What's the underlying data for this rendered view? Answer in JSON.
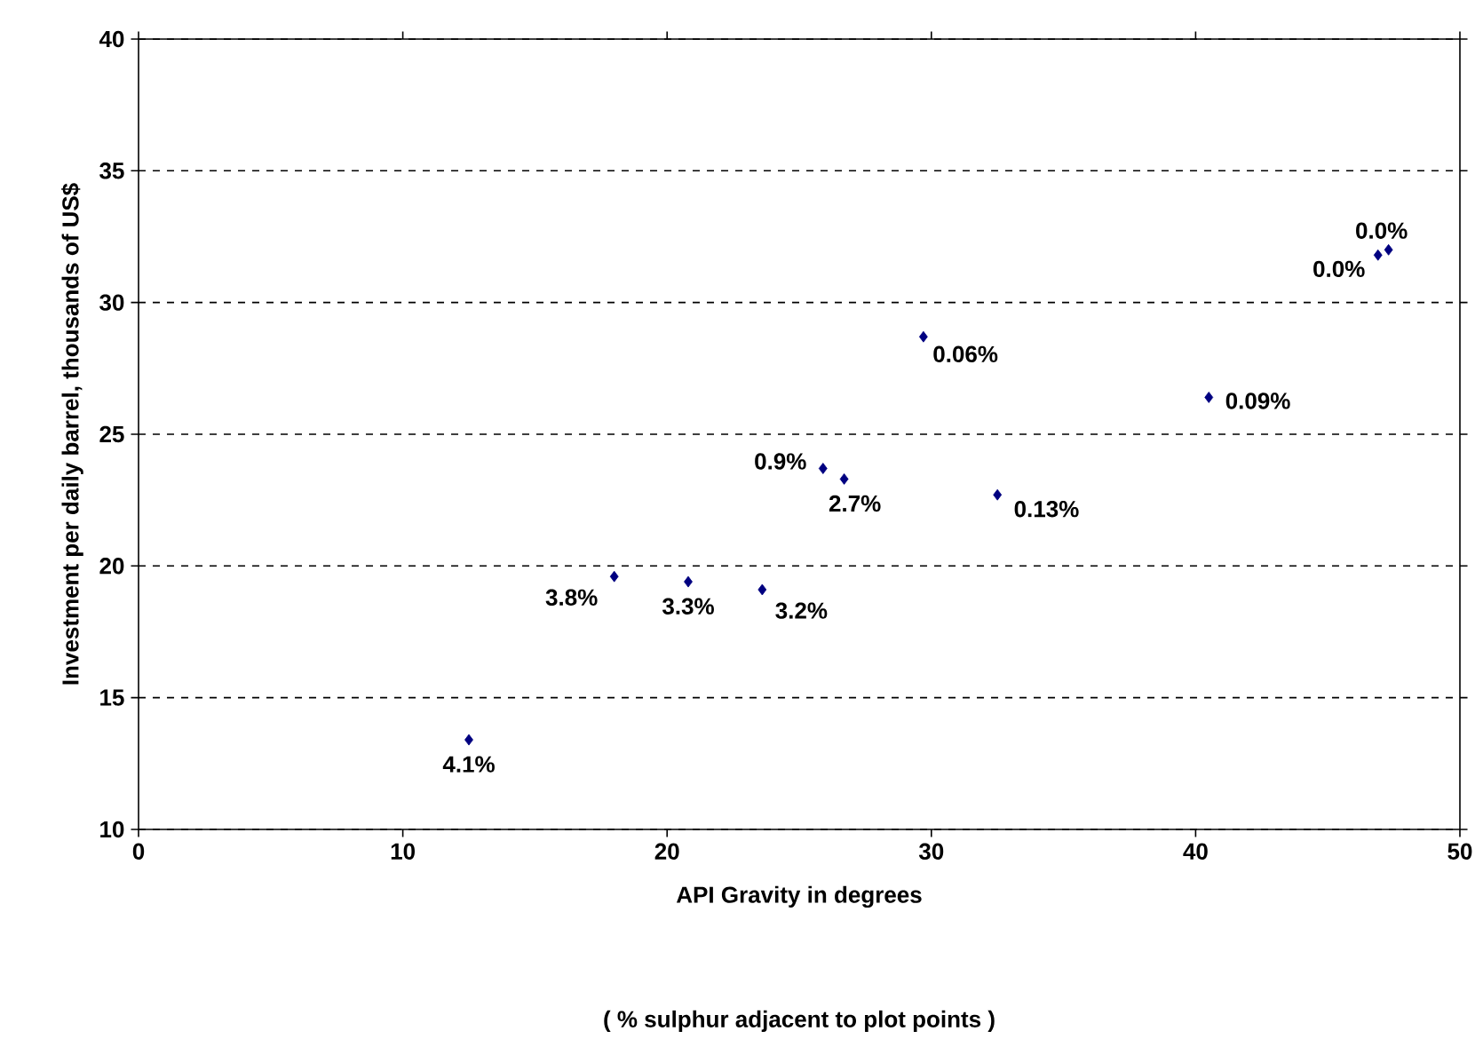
{
  "chart_data": {
    "type": "scatter",
    "xlabel": "API Gravity in degrees",
    "ylabel": "Investment per daily barrel, thousands of US$",
    "annotations": [
      {
        "text": "4.1%",
        "x": 12.5,
        "y": 13.4
      },
      {
        "text": "3.8%",
        "x": 18.0,
        "y": 19.6
      },
      {
        "text": "3.3%",
        "x": 20.8,
        "y": 19.4
      },
      {
        "text": "3.2%",
        "x": 23.6,
        "y": 19.1
      },
      {
        "text": "0.9%",
        "x": 25.9,
        "y": 23.7
      },
      {
        "text": "2.7%",
        "x": 26.7,
        "y": 23.3
      },
      {
        "text": "0.06%",
        "x": 29.7,
        "y": 28.7
      },
      {
        "text": "0.13%",
        "x": 32.5,
        "y": 22.7
      },
      {
        "text": "0.09%",
        "x": 40.5,
        "y": 26.4
      },
      {
        "text": "0.0%",
        "x": 46.9,
        "y": 31.8
      },
      {
        "text": "0.0%",
        "x": 47.3,
        "y": 32.0
      },
      "( % sulphur adjacent to plot points )"
    ],
    "x": [
      12.5,
      18.0,
      20.8,
      23.6,
      25.9,
      26.7,
      29.7,
      32.5,
      40.5,
      46.9,
      47.3
    ],
    "values": [
      13.4,
      19.6,
      19.4,
      19.1,
      23.7,
      23.3,
      28.7,
      22.7,
      26.4,
      31.8,
      32.0
    ],
    "color": "#000080",
    "marker": "diamond",
    "line_style": "none",
    "xlim": [
      0,
      50
    ],
    "ylim": [
      10,
      40
    ],
    "xticks": [
      0,
      10,
      20,
      30,
      40,
      50
    ],
    "yticks": [
      10,
      15,
      20,
      25,
      30,
      35,
      40
    ],
    "grid": "y"
  }
}
